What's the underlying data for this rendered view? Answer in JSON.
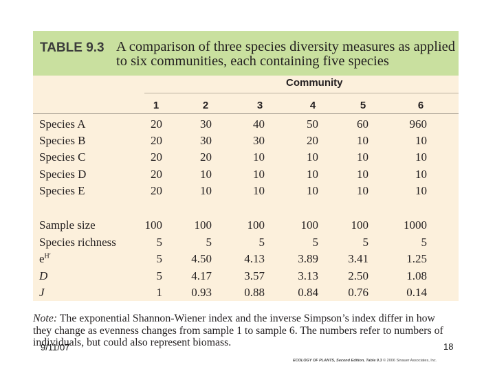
{
  "table": {
    "number": "TABLE 9.3",
    "caption": "A comparison of three species diversity measures as applied to six communities, each containing five species",
    "group_header": "Community",
    "columns": [
      "1",
      "2",
      "3",
      "4",
      "5",
      "6"
    ],
    "rows": [
      {
        "label": "Species A",
        "values": [
          "20",
          "30",
          "40",
          "50",
          "60",
          "960"
        ]
      },
      {
        "label": "Species B",
        "values": [
          "20",
          "30",
          "30",
          "20",
          "10",
          "10"
        ]
      },
      {
        "label": "Species C",
        "values": [
          "20",
          "20",
          "10",
          "10",
          "10",
          "10"
        ]
      },
      {
        "label": "Species D",
        "values": [
          "20",
          "10",
          "10",
          "10",
          "10",
          "10"
        ]
      },
      {
        "label": "Species E",
        "values": [
          "20",
          "10",
          "10",
          "10",
          "10",
          "10"
        ]
      },
      {
        "label": "Sample size",
        "values": [
          "100",
          "100",
          "100",
          "100",
          "100",
          "1000"
        ]
      },
      {
        "label": "Species richness",
        "values": [
          "5",
          "5",
          "5",
          "5",
          "5",
          "5"
        ]
      },
      {
        "label_base": "e",
        "label_sup": "H′",
        "values": [
          "5",
          "4.50",
          "4.13",
          "3.89",
          "3.41",
          "1.25"
        ]
      },
      {
        "label": "D",
        "values": [
          "5",
          "4.17",
          "3.57",
          "3.13",
          "2.50",
          "1.08"
        ]
      },
      {
        "label": "J",
        "values": [
          "1",
          "0.93",
          "0.88",
          "0.84",
          "0.76",
          "0.14"
        ]
      }
    ]
  },
  "note": {
    "prefix": "Note:",
    "text": " The exponential Shannon-Wiener index and the inverse Simpson’s index differ in how they change as evenness changes from sample 1 to sample 6. The numbers refer to numbers of individuals, but could also represent biomass."
  },
  "footer": {
    "date": "9/11/07",
    "page": "18",
    "credit_title": "ECOLOGY OF PLANTS, Second Edition, Table 9.3",
    "credit_rest": "  © 2006 Sinauer Associates, Inc."
  }
}
